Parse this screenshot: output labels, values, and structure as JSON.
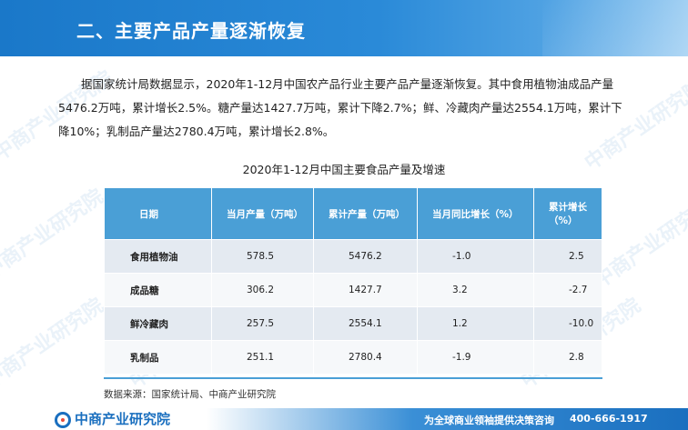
{
  "header": {
    "title": "二、主要产品产量逐渐恢复"
  },
  "intro": "据国家统计局数据显示，2020年1-12月中国农产品行业主要产品产量逐渐恢复。其中食用植物油成品产量5476.2万吨，累计增长2.5%。糖产量达1427.7万吨，累计下降2.7%；鲜、冷藏肉产量达2554.1万吨，累计下降10%；乳制品产量达2780.4万吨，累计增长2.8%。",
  "table": {
    "title": "2020年1-12月中国主要食品产量及增速",
    "headers": [
      "日期",
      "当月产量（万吨）",
      "累计产量（万吨）",
      "当月同比增长（%）",
      "累计增长（%）"
    ],
    "rows": [
      [
        "食用植物油",
        "578.5",
        "5476.2",
        "-1.0",
        "2.5"
      ],
      [
        "成品糖",
        "306.2",
        "1427.7",
        "3.2",
        "-2.7"
      ],
      [
        "鲜冷藏肉",
        "257.5",
        "2554.1",
        "1.2",
        "-10.0"
      ],
      [
        "乳制品",
        "251.1",
        "2780.4",
        "-1.9",
        "2.8"
      ]
    ]
  },
  "source": "数据来源：国家统计局、中商产业研究院",
  "footer": {
    "logo": "中商产业研究院",
    "slogan": "为全球商业领袖提供决策咨询",
    "phone": "400-666-1917"
  },
  "watermark": "中商产业研究院",
  "colors": {
    "primary": "#1a78c9",
    "table_header": "#4a9fd6"
  }
}
